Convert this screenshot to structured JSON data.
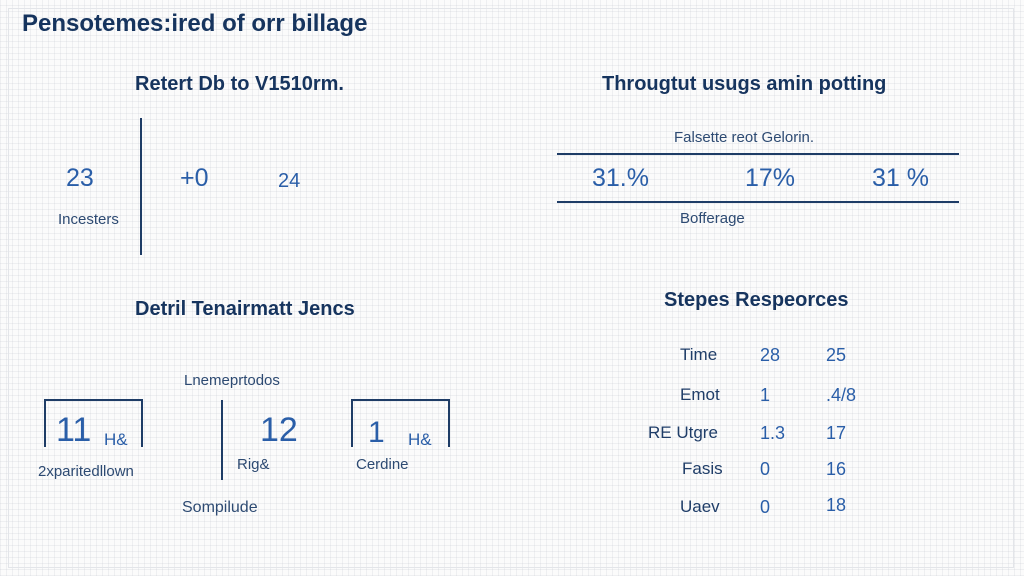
{
  "page": {
    "title": "Pensotemes:ired of orr billage"
  },
  "panel_top_left": {
    "heading": "Retert Db to V1510rm.",
    "stat_main": "23",
    "stat_main_label": "Incesters",
    "stat_delta": "+0",
    "stat_alt": "24"
  },
  "panel_top_right": {
    "heading": "Througtut usugs amin potting",
    "subtitle": "Falsette reot Gelorin.",
    "values": [
      "31.%",
      "17%",
      "31 %"
    ],
    "footer": "Bofferage"
  },
  "panel_bottom_left": {
    "heading": "Detril Tenairmatt Jencs",
    "top_label": "Lnemeprtodos",
    "box1_value": "11",
    "box1_unit": "H&",
    "box1_label": "2xparitedllown",
    "mid_value": "12",
    "mid_label": "Rig&",
    "box2_value": "1",
    "box2_unit": "H&",
    "box2_label": "Cerdine",
    "bottom_label": "Sompilude"
  },
  "panel_bottom_right": {
    "heading": "Stepes Respeorces",
    "rows": [
      {
        "label": "Time",
        "v1": "28",
        "v2": "25"
      },
      {
        "label": "Emot",
        "v1": "1",
        "v2": ".4/8"
      },
      {
        "label": "RE Utgre",
        "v1": "1.3",
        "v2": "17"
      },
      {
        "label": "Fasis",
        "v1": "0",
        "v2": "16"
      },
      {
        "label": "Uaev",
        "v1": "0",
        "v2": "18"
      }
    ]
  }
}
